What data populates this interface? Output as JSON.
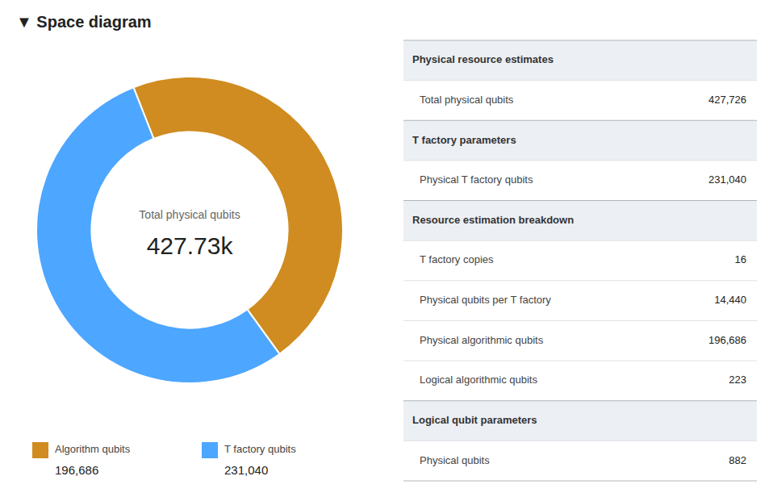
{
  "chart_data": [
    {
      "type": "pie",
      "title": "▼ Space diagram",
      "categories": [
        "Algorithm qubits",
        "T factory qubits"
      ],
      "values": [
        196686,
        231040
      ],
      "value_labels": [
        "196,686",
        "231,040"
      ],
      "colors": [
        "#d08c20",
        "#4da6ff"
      ],
      "annotations": [
        "Total physical qubits",
        "427.73k"
      ],
      "legend": "bottom"
    },
    {
      "type": "table",
      "sections": [
        {
          "header": "Physical resource estimates",
          "rows": [
            {
              "label": "Total physical qubits",
              "value": "427,726"
            }
          ]
        },
        {
          "header": "T factory parameters",
          "rows": [
            {
              "label": "Physical T factory qubits",
              "value": "231,040"
            }
          ]
        },
        {
          "header": "Resource estimation breakdown",
          "rows": [
            {
              "label": "T factory copies",
              "value": "16"
            },
            {
              "label": "Physical qubits per T factory",
              "value": "14,440"
            },
            {
              "label": "Physical algorithmic qubits",
              "value": "196,686"
            },
            {
              "label": "Logical algorithmic qubits",
              "value": "223"
            }
          ]
        },
        {
          "header": "Logical qubit parameters",
          "rows": [
            {
              "label": "Physical qubits",
              "value": "882"
            }
          ]
        }
      ]
    }
  ]
}
